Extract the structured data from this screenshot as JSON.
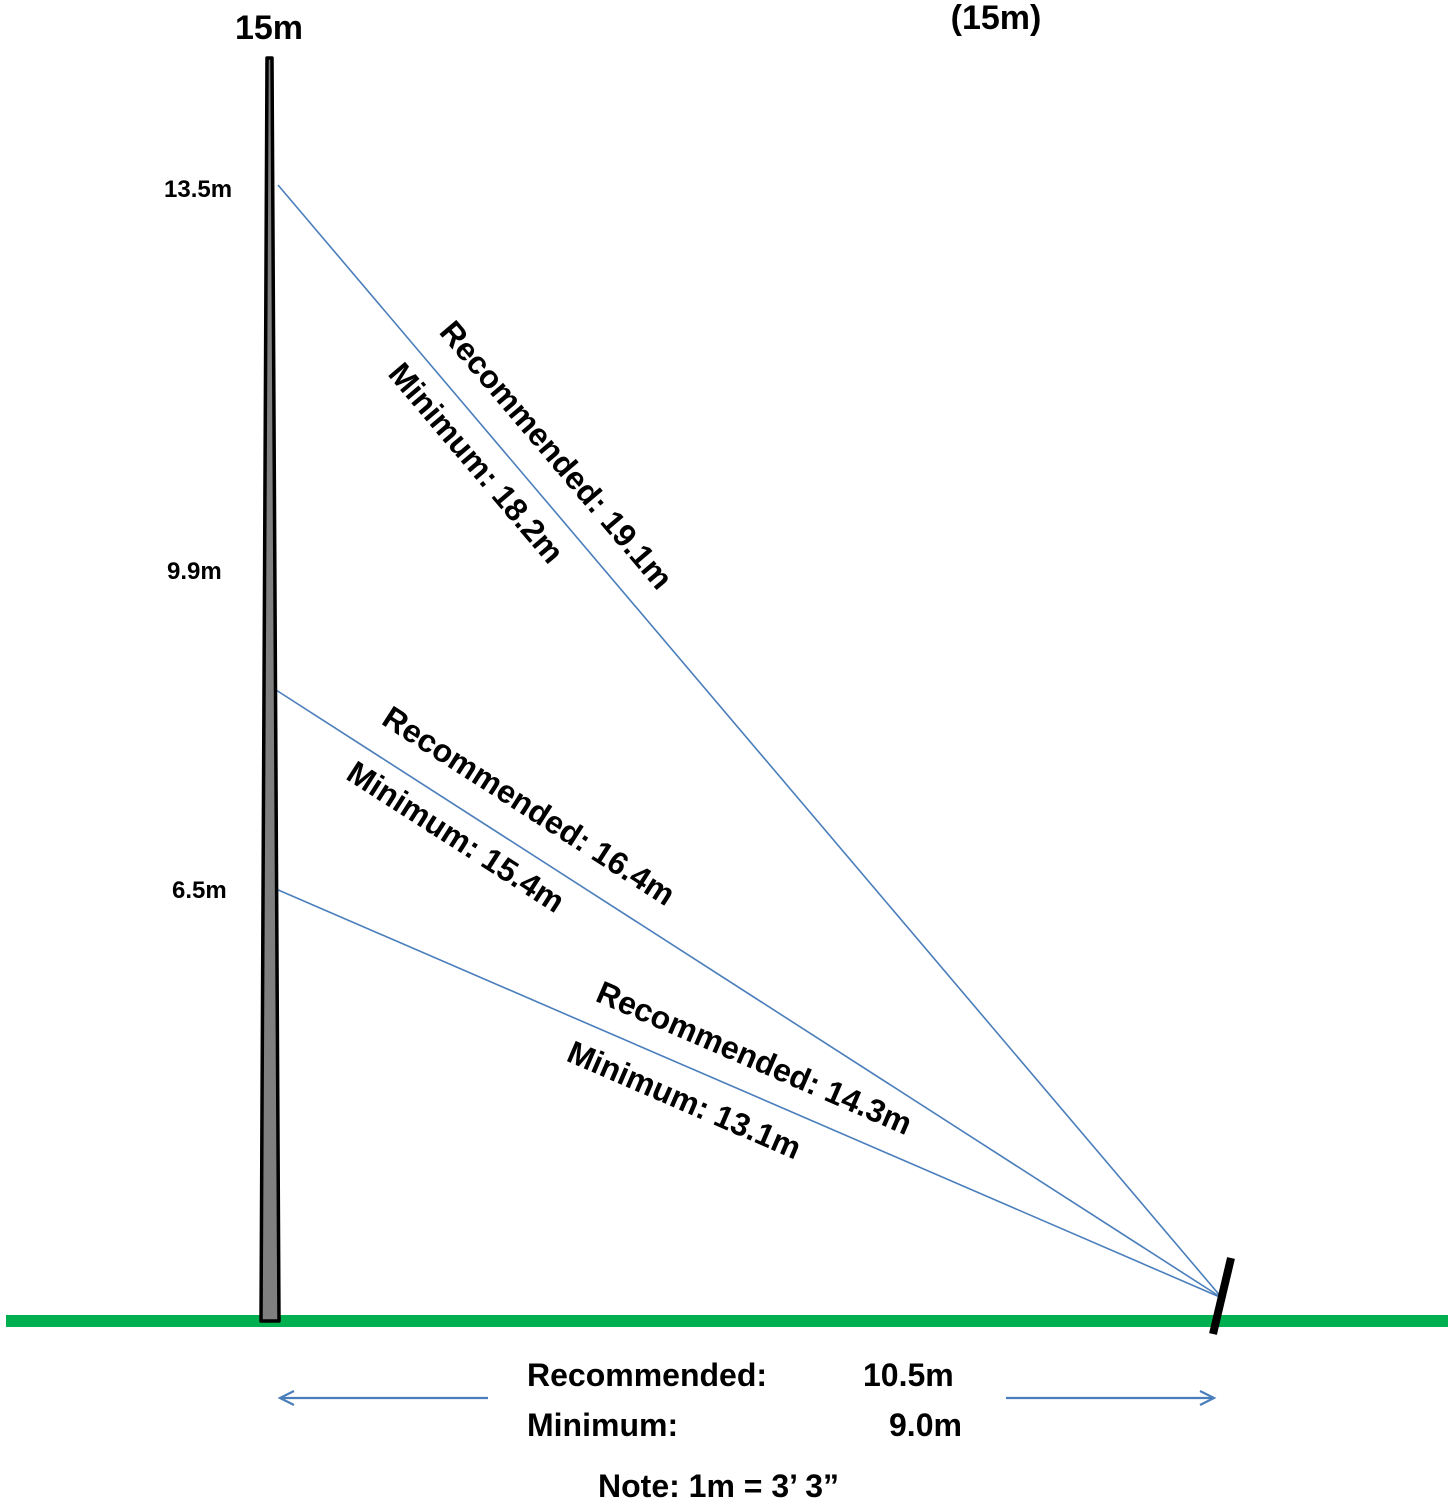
{
  "header": {
    "mast_height": "15m",
    "mast_height_paren": "(15m)"
  },
  "mast": {
    "attachment_points": [
      {
        "height_label": "13.5m"
      },
      {
        "height_label": "9.9m"
      },
      {
        "height_label": "6.5m"
      }
    ]
  },
  "guy_wires": [
    {
      "recommended": "Recommended:  19.1m",
      "minimum": "Minimum:  18.2m"
    },
    {
      "recommended": "Recommended:  16.4m",
      "minimum": "Minimum:  15.4m"
    },
    {
      "recommended": "Recommended:  14.3m",
      "minimum": "Minimum:  13.1m"
    }
  ],
  "anchor_distance": {
    "recommended_label": "Recommended:",
    "recommended_value": "10.5m",
    "minimum_label": "Minimum:",
    "minimum_value": "9.0m"
  },
  "note": "Note:  1m = 3’ 3”",
  "colors": {
    "ground": "#00b050",
    "wire": "#4a7ebb",
    "mast_fill": "#7f7f7f",
    "mast_outline": "#000000"
  }
}
